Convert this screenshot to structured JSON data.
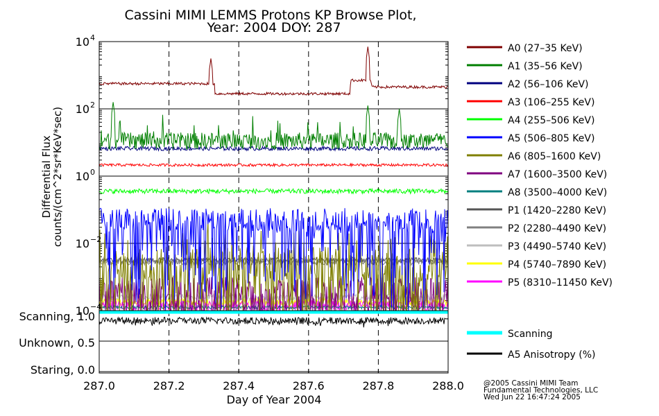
{
  "chart_data": {
    "type": "line",
    "title_line1": "Cassini MIMI LEMMS Protons KP Browse Plot,",
    "title_line2": "Year: 2004 DOY: 287",
    "ylabel_line1": "Differential Flux",
    "ylabel_line2": "counts/(cm^2*sr*KeV*sec)",
    "xlabel": "Day of Year 2004",
    "x_range": [
      287.0,
      288.0
    ],
    "x_ticks": [
      "287.0",
      "287.2",
      "287.4",
      "287.6",
      "287.8",
      "288.0"
    ],
    "x_tick_values": [
      287.0,
      287.2,
      287.4,
      287.6,
      287.8,
      288.0
    ],
    "y_scale": "log",
    "y_range_exp": [
      -4,
      4
    ],
    "y_ticks": [
      {
        "base": "10",
        "exp": "4",
        "value_exp": 4
      },
      {
        "base": "10",
        "exp": "2",
        "value_exp": 2
      },
      {
        "base": "10",
        "exp": "0",
        "value_exp": 0
      },
      {
        "base": "10",
        "exp": "−2",
        "value_exp": -2
      },
      {
        "base": "10",
        "exp": "−4",
        "value_exp": -4
      }
    ],
    "mode_labels": [
      "Scanning, 1.0",
      "Unknown, 0.5",
      "Staring, 0.0"
    ],
    "series": [
      {
        "name": "A0 (27–35 KeV)",
        "color": "#7f0000",
        "baseline_exp": 2.75,
        "noise": 0.04,
        "spikes": [
          [
            287.32,
            3.5
          ],
          [
            287.77,
            3.85
          ]
        ]
      },
      {
        "name": "A1 (35–56 KeV)",
        "color": "#007f00",
        "baseline_exp": 1.05,
        "noise": 0.25,
        "spikes": [
          [
            287.04,
            2.2
          ],
          [
            287.77,
            2.1
          ],
          [
            287.86,
            2.0
          ]
        ]
      },
      {
        "name": "A2 (56–106 KeV)",
        "color": "#00007f",
        "baseline_exp": 0.82,
        "noise": 0.06,
        "spikes": []
      },
      {
        "name": "A3 (106–255 KeV)",
        "color": "#ff0000",
        "baseline_exp": 0.33,
        "noise": 0.04,
        "spikes": []
      },
      {
        "name": "A4 (255–506 KeV)",
        "color": "#00ff00",
        "baseline_exp": -0.45,
        "noise": 0.07,
        "spikes": []
      },
      {
        "name": "A5 (506–805 KeV)",
        "color": "#0000ff",
        "baseline_exp": -1.3,
        "noise": 0.35,
        "spikes": []
      },
      {
        "name": "A6 (805–1600 KeV)",
        "color": "#7f7f00",
        "baseline_exp": -2.6,
        "noise": 0.5,
        "spikes": []
      },
      {
        "name": "A7 (1600–3500 KeV)",
        "color": "#7f007f",
        "baseline_exp": -3.4,
        "noise": 0.4,
        "spikes": []
      },
      {
        "name": "A8 (3500–4000 KeV)",
        "color": "#007f7f",
        "baseline_exp": -3.9,
        "noise": 0.05,
        "spikes": []
      },
      {
        "name": "P1 (1420–2280 KeV)",
        "color": "#555555",
        "baseline_exp": -2.5,
        "noise": 0.08,
        "spikes": []
      },
      {
        "name": "P2 (2280–4490 KeV)",
        "color": "#808080",
        "baseline_exp": -2.55,
        "noise": 0.1,
        "spikes": []
      },
      {
        "name": "P3 (4490–5740 KeV)",
        "color": "#bebebe",
        "baseline_exp": -3.6,
        "noise": 0.1,
        "spikes": []
      },
      {
        "name": "P4 (5740–7890 KeV)",
        "color": "#ffff00",
        "baseline_exp": -3.75,
        "noise": 0.12,
        "spikes": []
      },
      {
        "name": "P5 (8310–11450 KeV)",
        "color": "#ff00ff",
        "baseline_exp": -3.85,
        "noise": 0.15,
        "spikes": []
      }
    ],
    "lower_panel": {
      "scanning": {
        "name": "Scanning",
        "color": "#00ffff",
        "value": 1.0
      },
      "anisotropy": {
        "name": "A5 Anisotropy (%)",
        "color": "#000000",
        "baseline": 0.85,
        "noise": 0.06
      }
    },
    "credits": [
      "@2005 Cassini MIMI Team",
      "Fundamental Technologies, LLC",
      "Wed Jun 22 16:47:24 2005"
    ]
  }
}
